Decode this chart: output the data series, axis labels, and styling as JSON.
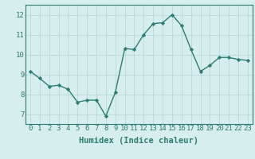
{
  "x": [
    0,
    1,
    2,
    3,
    4,
    5,
    6,
    7,
    8,
    9,
    10,
    11,
    12,
    13,
    14,
    15,
    16,
    17,
    18,
    19,
    20,
    21,
    22,
    23
  ],
  "y": [
    9.15,
    8.8,
    8.4,
    8.45,
    8.25,
    7.6,
    7.7,
    7.7,
    6.9,
    8.1,
    10.3,
    10.25,
    11.0,
    11.55,
    11.6,
    12.0,
    11.45,
    10.25,
    9.15,
    9.45,
    9.85,
    9.85,
    9.75,
    9.7
  ],
  "line_color": "#2e7d6e",
  "marker": "D",
  "marker_size": 2.2,
  "bg_color": "#d6eeee",
  "grid_color": "#b8d8d8",
  "xlabel": "Humidex (Indice chaleur)",
  "xlabel_fontsize": 7.5,
  "ylim": [
    6.5,
    12.5
  ],
  "xlim": [
    -0.5,
    23.5
  ],
  "yticks": [
    7,
    8,
    9,
    10,
    11,
    12
  ],
  "xticks": [
    0,
    1,
    2,
    3,
    4,
    5,
    6,
    7,
    8,
    9,
    10,
    11,
    12,
    13,
    14,
    15,
    16,
    17,
    18,
    19,
    20,
    21,
    22,
    23
  ],
  "tick_fontsize": 6.5,
  "line_width": 1.0
}
